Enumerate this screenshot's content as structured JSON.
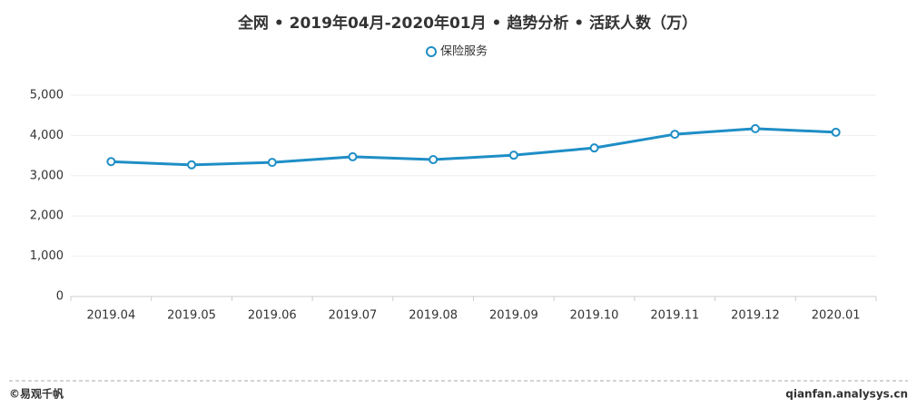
{
  "chart_data": {
    "type": "line",
    "title": "全网 • 2019年04月-2020年01月 • 趋势分析 • 活跃人数（万）",
    "categories": [
      "2019.04",
      "2019.05",
      "2019.06",
      "2019.07",
      "2019.08",
      "2019.09",
      "2019.10",
      "2019.11",
      "2019.12",
      "2020.01"
    ],
    "series": [
      {
        "name": "保险服务",
        "color": "#1f8ec6",
        "values": [
          3350,
          3270,
          3330,
          3470,
          3400,
          3510,
          3690,
          4030,
          4170,
          4080
        ]
      }
    ],
    "ylim": [
      0,
      5000
    ],
    "yticks": [
      0,
      {
        "value": 1000,
        "label": "1,000"
      },
      {
        "value": 2000,
        "label": "2,000"
      },
      {
        "value": 3000,
        "label": "3,000"
      },
      {
        "value": 4000,
        "label": "4,000"
      },
      {
        "value": 5000,
        "label": "5,000"
      }
    ],
    "grid": true
  },
  "footer": {
    "left": "©易观千帆",
    "right": "qianfan.analysys.cn"
  }
}
